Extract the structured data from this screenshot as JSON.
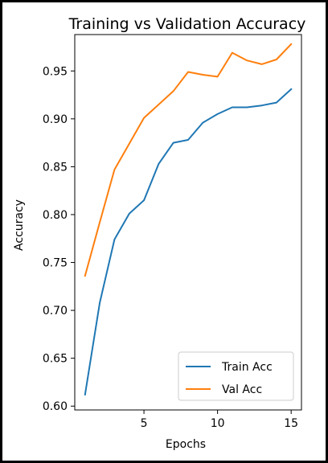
{
  "chart_data": {
    "type": "line",
    "title": "Training vs Validation Accuracy",
    "xlabel": "Epochs",
    "ylabel": "Accuracy",
    "x": [
      1,
      2,
      3,
      4,
      5,
      6,
      7,
      8,
      9,
      10,
      11,
      12,
      13,
      14,
      15
    ],
    "xlim": [
      0.3,
      15.7
    ],
    "ylim": [
      0.596,
      0.988
    ],
    "xticks": [
      5,
      10,
      15
    ],
    "yticks": [
      0.6,
      0.65,
      0.7,
      0.75,
      0.8,
      0.85,
      0.9,
      0.95
    ],
    "ytick_labels": [
      "0.60",
      "0.65",
      "0.70",
      "0.75",
      "0.80",
      "0.85",
      "0.90",
      "0.95"
    ],
    "xtick_labels": [
      "5",
      "10",
      "15"
    ],
    "grid": false,
    "legend_position": "lower-right",
    "series": [
      {
        "name": "Train Acc",
        "color": "#1f77b4",
        "values": [
          0.612,
          0.708,
          0.774,
          0.801,
          0.815,
          0.853,
          0.875,
          0.878,
          0.896,
          0.905,
          0.912,
          0.912,
          0.914,
          0.917,
          0.931
        ]
      },
      {
        "name": "Val Acc",
        "color": "#ff7f0e",
        "values": [
          0.736,
          0.792,
          0.847,
          0.874,
          0.901,
          0.915,
          0.929,
          0.949,
          0.946,
          0.944,
          0.969,
          0.961,
          0.957,
          0.962,
          0.978
        ]
      }
    ]
  }
}
